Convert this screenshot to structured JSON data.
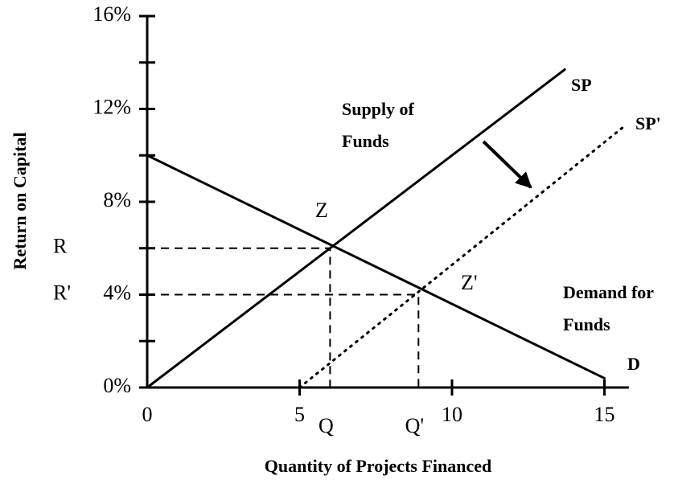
{
  "chart_data": {
    "type": "line",
    "xlabel": "Quantity of Projects Financed",
    "ylabel": "Return on Capital",
    "xlim": [
      0,
      15.8
    ],
    "ylim": [
      0,
      16
    ],
    "xticks": [
      0,
      5,
      10,
      15
    ],
    "yticks": [
      {
        "value": 0,
        "label": "0%"
      },
      {
        "value": 4,
        "label": "4%"
      },
      {
        "value": 8,
        "label": "8%"
      },
      {
        "value": 12,
        "label": "12%"
      },
      {
        "value": 16,
        "label": "16%"
      }
    ],
    "minor_yticks": [
      2,
      6,
      10,
      14
    ],
    "extra_yticks": [
      {
        "value": 6,
        "label": "R"
      },
      {
        "value": 4,
        "label": "R'"
      }
    ],
    "extra_xticks": [
      {
        "value": 6,
        "label": "Q"
      },
      {
        "value": 8.9,
        "label": "Q'"
      }
    ],
    "series": [
      {
        "name": "D",
        "color": "#000000",
        "style": "solid",
        "x": [
          0,
          15
        ],
        "values": [
          10,
          0.4
        ]
      },
      {
        "name": "SP",
        "color": "#000000",
        "style": "solid",
        "x": [
          0,
          13.7
        ],
        "values": [
          0,
          13.7
        ]
      },
      {
        "name": "SP'",
        "color": "#000000",
        "style": "dotted",
        "x": [
          5,
          15.6
        ],
        "values": [
          0,
          11.2
        ]
      }
    ],
    "equilibria": [
      {
        "label": "Z",
        "x": 6,
        "y": 6
      },
      {
        "label": "Z'",
        "x": 8.9,
        "y": 4
      }
    ],
    "annotations": [
      [
        "Supply of",
        "Funds"
      ],
      [
        "Demand for",
        "Funds"
      ]
    ]
  }
}
